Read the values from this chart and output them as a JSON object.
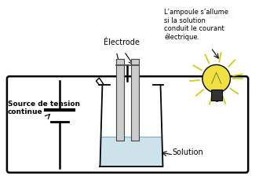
{
  "background_color": "#ffffff",
  "border_color": "#000000",
  "label_electrode": "Électrode",
  "label_source": "Source de tension\ncontinue",
  "label_solution": "Solution",
  "label_ampoule": "L’ampoule s’allume\nsi la solution\nconduit le courant\nélectrique.",
  "ray_color": "#cccc00",
  "bulb_fill": "#f0e040",
  "solution_fill": "#c0dce8",
  "electrode_color": "#aaaaaa",
  "battery_lw_long": 3.0,
  "battery_lw_short": 2.0
}
